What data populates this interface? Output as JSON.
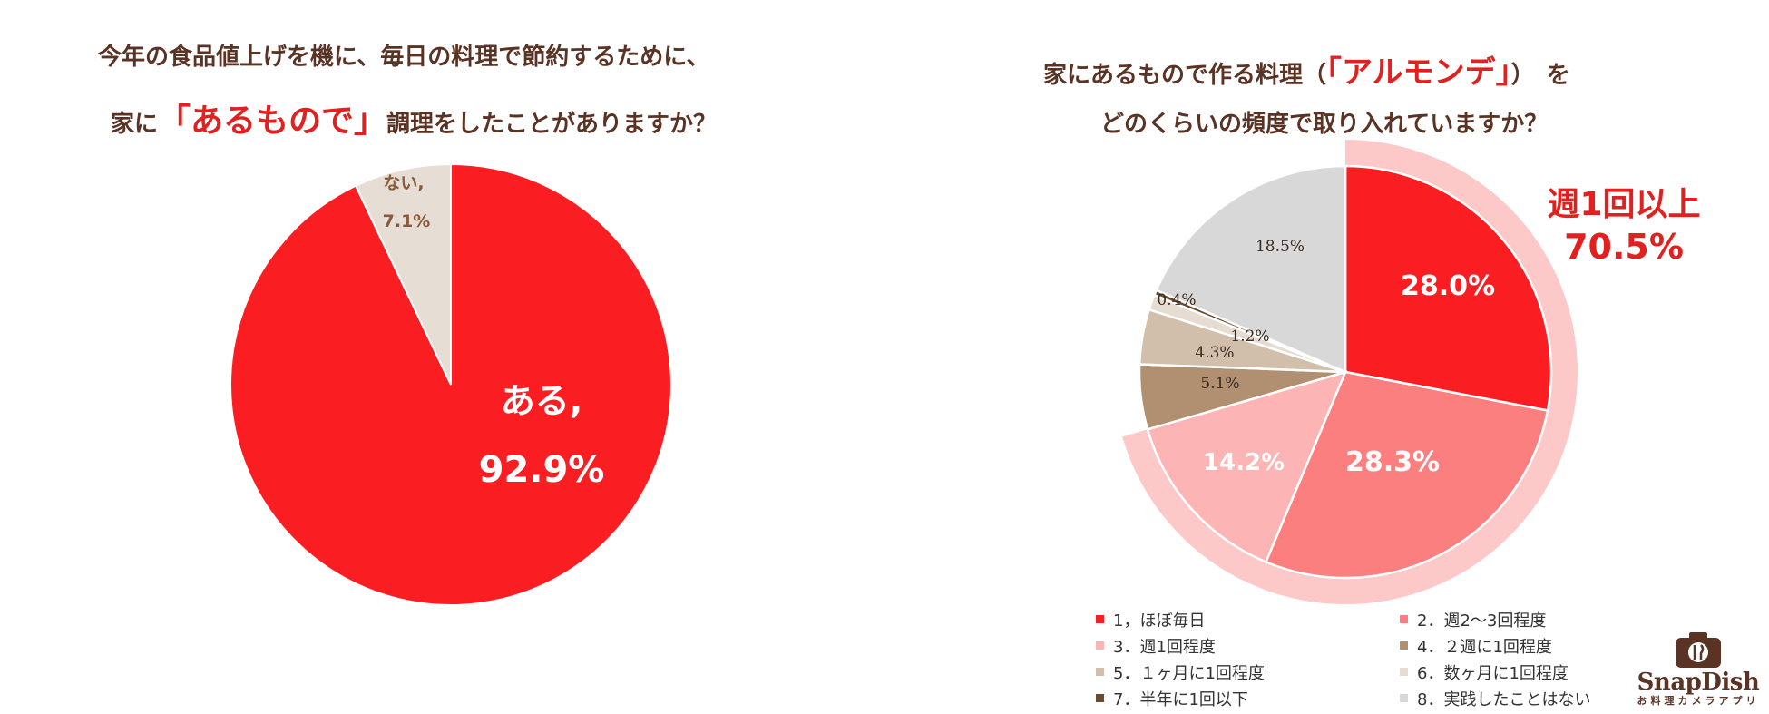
{
  "chart_data": [
    {
      "type": "pie",
      "title_line1": "今年の食品値上げを機に、毎日の料理で節約するために、",
      "title_line2_pre": "家に",
      "title_line2_highlight": "「あるもので」",
      "title_line2_post": "調理をしたことがありますか？",
      "slices": [
        {
          "label": "ある,",
          "value": 92.9,
          "value_label": "92.9%",
          "color": "#fa1e22"
        },
        {
          "label": "ない,",
          "value": 7.1,
          "value_label": "7.1%",
          "color": "#e6ddd4"
        }
      ]
    },
    {
      "type": "pie",
      "title_line1_pre": "家にあるもので作る料理（",
      "title_line1_highlight": "「アルモンデ」",
      "title_line1_post": "）　を",
      "title_line2": "どのくらいの頻度で取り入れていますか？",
      "slices": [
        {
          "label": "1，ほぼ毎日",
          "value": 28.0,
          "value_label": "28.0%",
          "color": "#fa1e22"
        },
        {
          "label": "2．週2～3回程度",
          "value": 28.3,
          "value_label": "28.3%",
          "color": "#fb7f7f"
        },
        {
          "label": "3．週1回程度",
          "value": 14.2,
          "value_label": "14.2%",
          "color": "#fdb4b4"
        },
        {
          "label": "4．２週に1回程度",
          "value": 5.1,
          "value_label": "5.1%",
          "color": "#b09070"
        },
        {
          "label": "5．１ヶ月に1回程度",
          "value": 4.3,
          "value_label": "4.3%",
          "color": "#d1bfac"
        },
        {
          "label": "6．数ヶ月に1回程度",
          "value": 1.2,
          "value_label": "1.2%",
          "color": "#e6dcd2"
        },
        {
          "label": "7．半年に1回以下",
          "value": 0.4,
          "value_label": "0.4%",
          "color": "#6b4a2e"
        },
        {
          "label": "8．実践したことはない",
          "value": 18.5,
          "value_label": "18.5%",
          "color": "#d8d8d8"
        }
      ],
      "annotation_line1": "週1回以上",
      "annotation_line2": "70.5%",
      "annotation_color": "#e2201f",
      "highlight_arc_color": "#fdc8c8"
    }
  ],
  "logo": {
    "name": "SnapDish",
    "tagline": "お料理カメラアプリ"
  }
}
